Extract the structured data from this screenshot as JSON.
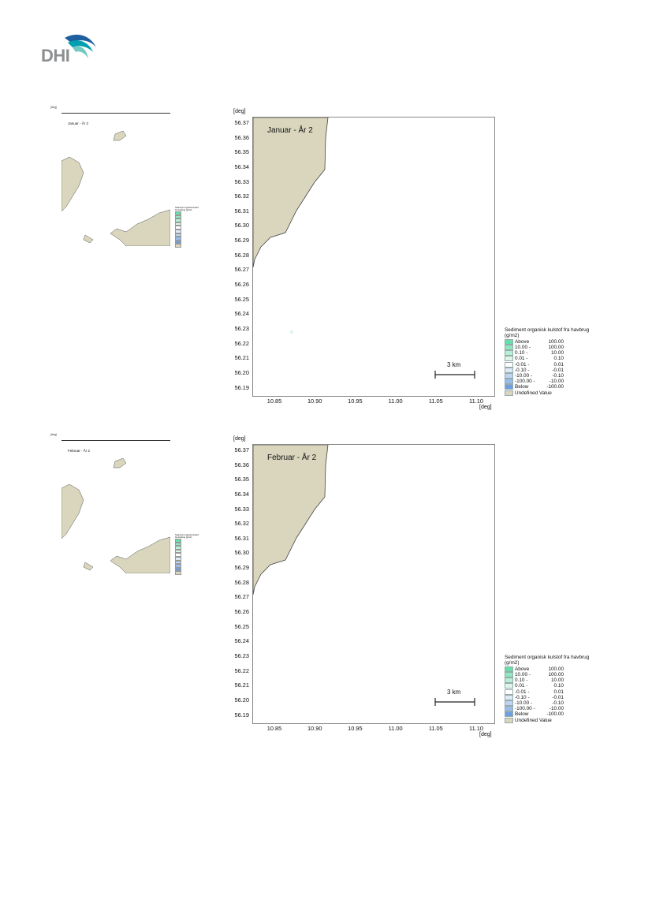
{
  "logo": {
    "text": "DHI",
    "icon": "dhi-wave-logo-icon",
    "colors": [
      "#00a0b0",
      "#1e5f9f",
      "#72c9c2"
    ]
  },
  "colors": {
    "land": "#d9d6bd",
    "coast": "#444444",
    "frame": "#888888"
  },
  "axes": {
    "unit_label": "[deg]",
    "y_ticks": [
      "56.37",
      "56.36",
      "56.35",
      "56.34",
      "56.33",
      "56.32",
      "56.31",
      "56.30",
      "56.29",
      "56.28",
      "56.27",
      "56.26",
      "56.25",
      "56.24",
      "56.23",
      "56.22",
      "56.21",
      "56.20",
      "56.19"
    ],
    "x_ticks": [
      "10.85",
      "10.90",
      "10.95",
      "11.00",
      "11.05",
      "11.10"
    ]
  },
  "scalebar_label": "3 km",
  "legend": {
    "title": "Sediment organisk kulstof fra havbrug (g/m2)",
    "rows": [
      {
        "label": "Above",
        "value": "100.00",
        "color": "#66e0a8"
      },
      {
        "label": "10.00 -",
        "value": "100.00",
        "color": "#8fe8c0"
      },
      {
        "label": "0.10 -",
        "value": "10.00",
        "color": "#b6f0d6"
      },
      {
        "label": "0.01 -",
        "value": "0.10",
        "color": "#dcf7ea"
      },
      {
        "label": "-0.01 -",
        "value": "0.01",
        "color": "#ffffff"
      },
      {
        "label": "-0.10 -",
        "value": "-0.01",
        "color": "#dde9f7"
      },
      {
        "label": "-10.00 -",
        "value": "-0.10",
        "color": "#bcd4f1"
      },
      {
        "label": "-100.00 -",
        "value": "-10.00",
        "color": "#98bdec"
      },
      {
        "label": "Below",
        "value": "-100.00",
        "color": "#6f9fe3"
      },
      {
        "label": "Undefined Value",
        "value": "",
        "color": "#d9d6bd"
      }
    ]
  },
  "overview": {
    "unit_label": "[deg]",
    "legend_title": "Sediment organisk kulstof",
    "legend_subtitle": "fra havbrug (g/m2)"
  },
  "figures": [
    {
      "title": "Januar - År 2",
      "overview_title": "Januar - År 2"
    },
    {
      "title": "Februar - År 2",
      "overview_title": "Februar - År 2"
    }
  ]
}
